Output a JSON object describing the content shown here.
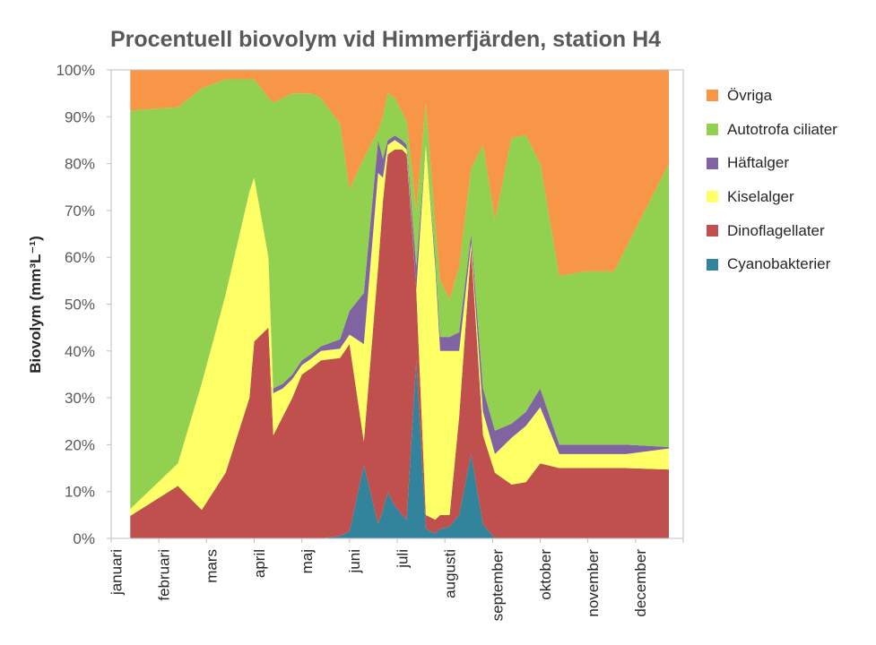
{
  "chart_data": {
    "type": "area",
    "stacked": "percent",
    "title": "Procentuell biovolym vid Himmerfjärden, station H4",
    "ylabel": "Biovolym (mm³L⁻¹)",
    "xlabel": "",
    "ylim": [
      0,
      100
    ],
    "yticks": [
      "0%",
      "10%",
      "20%",
      "30%",
      "40%",
      "50%",
      "60%",
      "70%",
      "80%",
      "90%",
      "100%"
    ],
    "x_range": [
      0,
      12
    ],
    "month_labels": [
      "januari",
      "februari",
      "mars",
      "april",
      "maj",
      "juni",
      "juli",
      "augusti",
      "september",
      "oktober",
      "november",
      "december"
    ],
    "x": [
      0.4,
      1.4,
      1.9,
      2.4,
      2.9,
      3.0,
      3.3,
      3.4,
      3.6,
      3.8,
      4.0,
      4.2,
      4.4,
      4.8,
      5.0,
      5.3,
      5.6,
      5.7,
      5.8,
      5.95,
      6.1,
      6.2,
      6.4,
      6.6,
      6.8,
      6.9,
      7.1,
      7.3,
      7.55,
      7.8,
      8.05,
      8.4,
      8.7,
      9.0,
      9.4,
      9.95,
      10.55,
      10.8,
      11.7
    ],
    "series": [
      {
        "name": "Cyanobakterier",
        "color": "#31849B",
        "values": [
          0,
          0,
          0,
          0,
          0,
          0,
          0,
          0,
          0,
          0,
          0,
          0,
          0,
          0.5,
          1.5,
          15.8,
          3,
          6,
          9.8,
          7,
          5,
          4,
          38,
          2,
          1,
          2,
          2.5,
          5,
          18,
          3,
          0,
          0,
          0,
          0,
          0,
          0,
          0,
          0,
          0
        ]
      },
      {
        "name": "Dinoflagellater",
        "color": "#C0504D",
        "values": [
          4.8,
          11.2,
          6.1,
          14,
          30,
          42,
          45,
          22,
          26,
          30,
          35,
          36,
          38,
          38,
          40,
          5,
          55,
          66,
          72,
          76,
          78,
          78,
          15,
          3,
          3,
          3,
          2.5,
          21,
          44,
          19,
          14,
          11.5,
          12,
          16,
          15,
          15,
          15,
          15,
          14.7
        ]
      },
      {
        "name": "Kiselalger",
        "color": "#FFFF66",
        "values": [
          1.5,
          4.8,
          27,
          38,
          44,
          35,
          15,
          9,
          6,
          4,
          2,
          2,
          2,
          2,
          2,
          21,
          20,
          5,
          2,
          2,
          1,
          1,
          0,
          79,
          54,
          35,
          35,
          14,
          1,
          5,
          4,
          10,
          12,
          12,
          3,
          3,
          3,
          3,
          4.5
        ]
      },
      {
        "name": "Häftalger",
        "color": "#8064A2",
        "values": [
          0,
          0,
          0,
          0,
          0,
          0,
          0,
          1,
          1,
          1,
          1,
          1,
          1,
          2,
          5,
          11,
          7,
          4,
          1,
          1,
          1,
          1,
          5,
          0,
          2,
          3,
          3,
          4,
          2,
          5,
          5,
          3,
          3,
          4,
          2,
          2,
          2,
          2,
          0.3
        ]
      },
      {
        "name": "Autotrofa ciliater",
        "color": "#92D050",
        "values": [
          85,
          76,
          63,
          46,
          24,
          21,
          34,
          61,
          61,
          60,
          57,
          55,
          53,
          46,
          26,
          29,
          2,
          9,
          10,
          8,
          6,
          5,
          12,
          9,
          7,
          12,
          8,
          14,
          14,
          52,
          45,
          61,
          59,
          48,
          36,
          37,
          37,
          42,
          60.5
        ]
      },
      {
        "name": "Övriga",
        "color": "#F79646",
        "values": [
          8.7,
          8,
          3.9,
          2,
          2,
          2,
          6,
          7,
          6,
          5,
          5,
          5,
          6,
          11.5,
          25.5,
          19,
          13,
          10,
          5,
          6,
          9,
          11,
          30,
          7,
          33,
          45,
          49,
          42,
          21,
          16,
          32,
          14.5,
          14,
          20,
          44,
          43,
          43,
          38,
          20
        ]
      }
    ],
    "legend_position": "right",
    "grid": false
  }
}
